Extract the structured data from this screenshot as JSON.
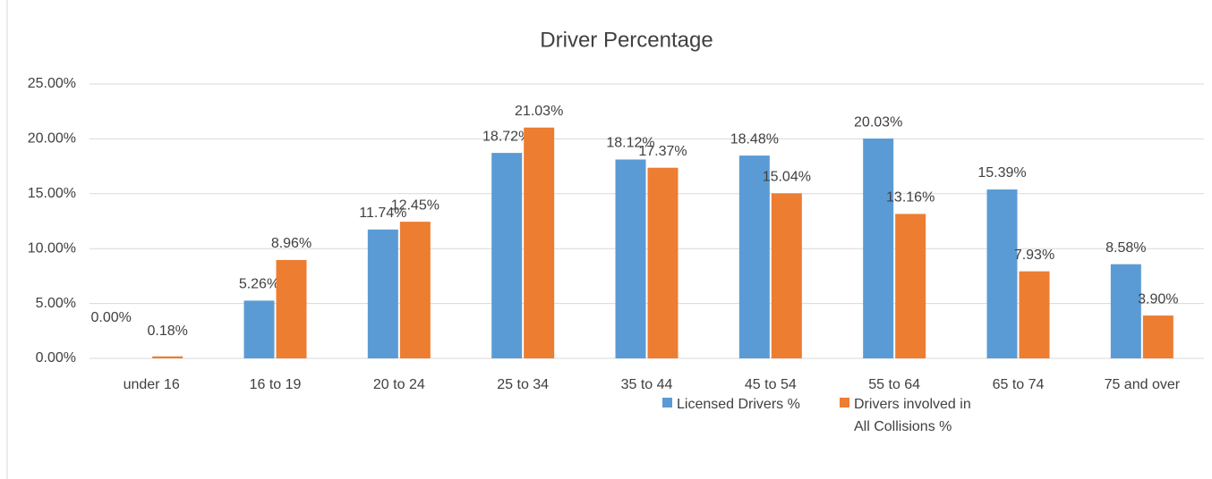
{
  "chart_data": {
    "type": "bar",
    "title": "Driver Percentage",
    "categories": [
      "under 16",
      "16 to 19",
      "20 to 24",
      "25 to 34",
      "35 to 44",
      "45 to 54",
      "55 to 64",
      "65 to 74",
      "75 and over"
    ],
    "series": [
      {
        "name": "Licensed Drivers %",
        "color": "#5b9bd5",
        "values": [
          0.0,
          5.26,
          11.74,
          18.72,
          18.12,
          18.48,
          20.03,
          15.39,
          8.58
        ],
        "value_labels": [
          "0.00%",
          "5.26%",
          "11.74%",
          "18.72%",
          "18.12%",
          "18.48%",
          "20.03%",
          "15.39%",
          "8.58%"
        ]
      },
      {
        "name": "Drivers involved in All Collisions %",
        "color": "#ed7d31",
        "values": [
          0.18,
          8.96,
          12.45,
          21.03,
          17.37,
          15.04,
          13.16,
          7.93,
          3.9
        ],
        "value_labels": [
          "0.18%",
          "8.96%",
          "12.45%",
          "21.03%",
          "17.37%",
          "15.04%",
          "13.16%",
          "7.93%",
          "3.90%"
        ]
      }
    ],
    "ylim": [
      0,
      25
    ],
    "yticks": [
      {
        "value": 0,
        "label": "0.00%"
      },
      {
        "value": 5,
        "label": "5.00%"
      },
      {
        "value": 10,
        "label": "10.00%"
      },
      {
        "value": 15,
        "label": "15.00%"
      },
      {
        "value": 20,
        "label": "20.00%"
      },
      {
        "value": 25,
        "label": "25.00%"
      }
    ],
    "grid": true,
    "legend": "bottom"
  }
}
